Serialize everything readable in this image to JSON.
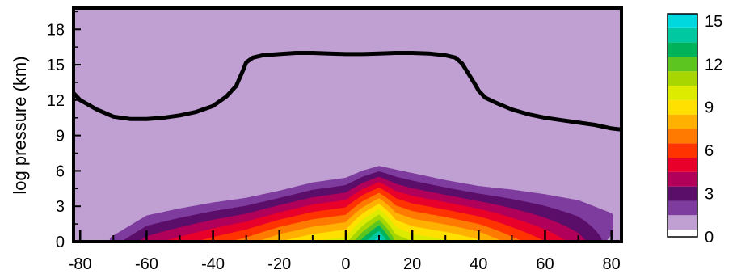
{
  "chart_data": {
    "type": "heatmap",
    "title": "",
    "xlabel": "",
    "ylabel": "log pressure (km)",
    "xlim": [
      -82,
      83
    ],
    "ylim": [
      0,
      19.8
    ],
    "xticks": [
      -80,
      -60,
      -40,
      -20,
      0,
      20,
      40,
      60,
      80
    ],
    "yticks": [
      0,
      3,
      6,
      9,
      12,
      15,
      18
    ],
    "colorbar": {
      "min": 0,
      "max": 15.5,
      "step": 1,
      "tick_labels": [
        0,
        3,
        6,
        9,
        12,
        15
      ],
      "colors": [
        "#ffffff",
        "#c09fd2",
        "#7e3c9e",
        "#5a0e6a",
        "#b0005a",
        "#e8002a",
        "#ff3300",
        "#ff7a00",
        "#ffb000",
        "#ffe000",
        "#dceb00",
        "#a8d600",
        "#5cc520",
        "#00b35a",
        "#00c8a0",
        "#00d8e0",
        "#00a6ff",
        "#0060ff",
        "#0020d8",
        "#00008a",
        "#000018"
      ]
    },
    "contour_line": {
      "color": "#000000",
      "x": [
        -82,
        -80,
        -75,
        -70,
        -65,
        -60,
        -55,
        -50,
        -45,
        -40,
        -36,
        -33,
        -31,
        -30,
        -28,
        -25,
        -20,
        -15,
        -10,
        -5,
        0,
        5,
        10,
        15,
        20,
        25,
        30,
        33,
        35,
        37,
        39,
        40,
        42,
        45,
        50,
        55,
        60,
        65,
        70,
        75,
        80,
        83
      ],
      "y": [
        12.6,
        12.0,
        11.2,
        10.6,
        10.4,
        10.4,
        10.5,
        10.7,
        11.0,
        11.5,
        12.3,
        13.2,
        14.5,
        15.2,
        15.6,
        15.8,
        15.9,
        16.0,
        16.0,
        15.95,
        15.9,
        15.9,
        15.95,
        16.0,
        16.0,
        15.95,
        15.8,
        15.6,
        15.1,
        14.2,
        13.3,
        12.8,
        12.2,
        11.8,
        11.2,
        10.8,
        10.5,
        10.3,
        10.1,
        9.9,
        9.6,
        9.5
      ]
    },
    "field_shape": {
      "x": [
        -82,
        -80,
        -70,
        -60,
        -50,
        -40,
        -30,
        -20,
        -10,
        0,
        5,
        10,
        15,
        20,
        30,
        40,
        50,
        60,
        70,
        80,
        83
      ],
      "top": [
        -2.0,
        -1.5,
        0.5,
        2.2,
        2.8,
        3.3,
        3.7,
        4.3,
        5.0,
        5.4,
        6.0,
        6.4,
        6.1,
        5.8,
        5.2,
        4.7,
        4.4,
        4.0,
        3.5,
        2.4,
        1.5
      ],
      "peak": [
        -3.0,
        -2.0,
        1.5,
        3.5,
        4.5,
        5.5,
        6.5,
        8.0,
        9.0,
        9.6,
        12.5,
        15.0,
        11.0,
        10.0,
        9.3,
        8.3,
        6.5,
        5.0,
        3.5,
        1.5,
        -0.5
      ],
      "h_at_zero": [
        0,
        0,
        1.0,
        6.0,
        7.0,
        8.0,
        9.5,
        10.5,
        11.5,
        13.0,
        15.0,
        15.3,
        15.0,
        14.0,
        12.0,
        10.5,
        9.0,
        6.0,
        3.5,
        0.5,
        0
      ]
    }
  }
}
